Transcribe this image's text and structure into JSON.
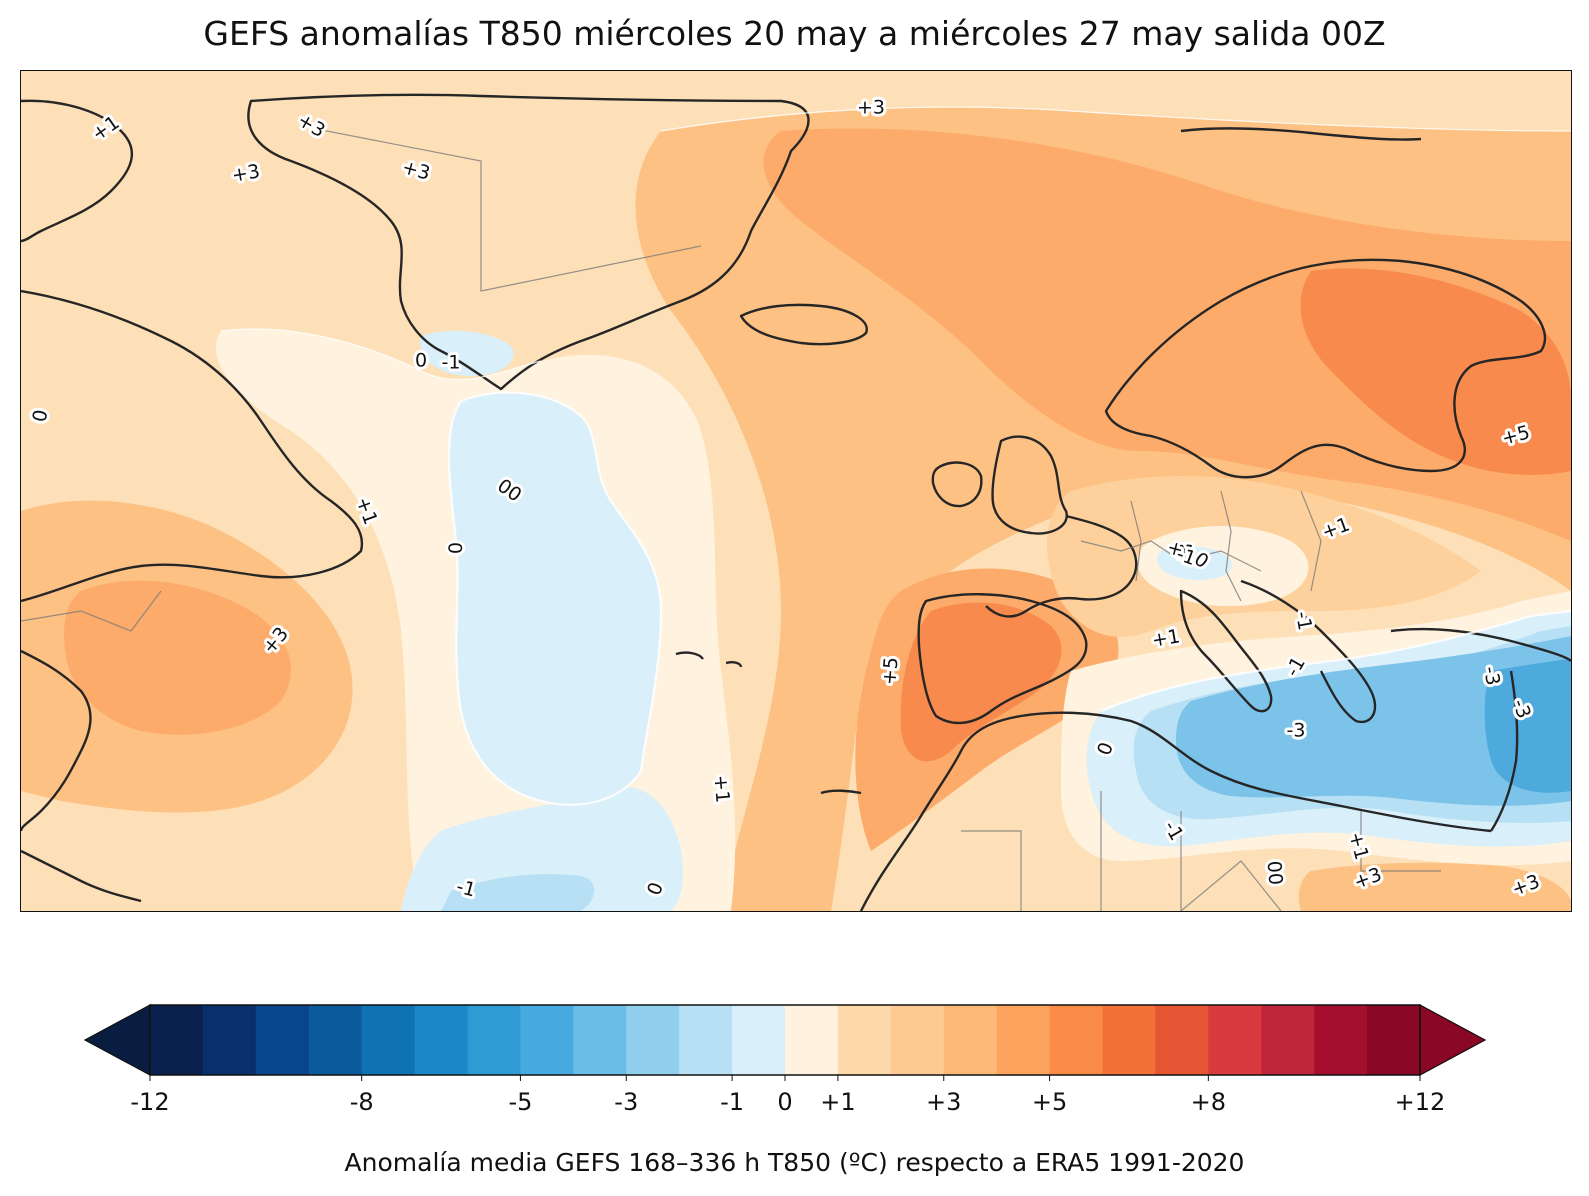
{
  "title": "GEFS anomalías T850 miércoles 20 may a miércoles 27 may salida 00Z",
  "colorbar": {
    "title": "Anomalía media GEFS 168–336 h T850 (ºC) respecto a ERA5 1991-2020",
    "tick_labels": [
      "-12",
      "-8",
      "-5",
      "-3",
      "-1",
      "0",
      "+1",
      "+3",
      "+5",
      "+8",
      "+12"
    ],
    "colors": [
      "#0a2150",
      "#08306b",
      "#08458a",
      "#0a5a9c",
      "#0f72b2",
      "#1a87c6",
      "#2e9bd5",
      "#47aade",
      "#69bde7",
      "#91cfee",
      "#b8e0f4",
      "#d9eff9",
      "#fff2de",
      "#fdd9a9",
      "#fdcb91",
      "#fdb97a",
      "#fca45e",
      "#fa8c47",
      "#f37139",
      "#e55533",
      "#d93a3e",
      "#c0243a",
      "#a50f2f",
      "#8a0725"
    ]
  },
  "map": {
    "colors": {
      "ocean_base": "#fde0b8",
      "warm1": "#fdd09c",
      "warm3": "#fdc184",
      "warm5": "#fcab6a",
      "warm8": "#f78a4c",
      "neutral": "#fff2de",
      "cool0": "#d9eff9",
      "cool1": "#b8e0f4",
      "cool3": "#7cc3ea",
      "cool5": "#4ea9dd",
      "coast": "#262626",
      "border": "#7a7a7a"
    },
    "contour_labels": [
      "+1",
      "+3",
      "+3",
      "+3",
      "+3",
      "0",
      "-1",
      "0",
      "+1",
      "00",
      "0",
      "+3",
      "+5",
      "+1",
      "0",
      "+1",
      "-1",
      "0",
      "+1",
      "-1",
      "+5",
      "+1",
      "-3",
      "-3",
      "-3",
      "0",
      "-1",
      "00",
      "+1",
      "+3",
      "+3",
      "-1",
      "0",
      "-1"
    ]
  }
}
